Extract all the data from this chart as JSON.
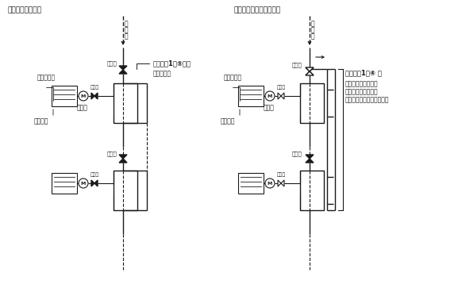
{
  "title_left": "（通常供給状態）",
  "title_right": "（部分的供給遮断状態）",
  "bg_color": "#ffffff",
  "line_color": "#1a1a1a",
  "text_color": "#1a1a1a",
  "annotation_bold_left": "技術指針1の⑤ニに",
  "annotation_sub_left": "規定する弁",
  "annotation_bold_right": "技術指針1の④ キ",
  "annotation_sub_right1": "ただし書に適合する",
  "annotation_sub_right2": "配管（戻り管と供給",
  "annotation_sub_right3": "管が兼用になっている。）",
  "label_kyukyukan": "供\n給\n管",
  "label_kobetsu_tank": "戸別タンク",
  "label_ryuryokei": "流量計",
  "label_nenshoki": "燃焼機器",
  "label_open": "（開）",
  "label_closed": "（閉）"
}
